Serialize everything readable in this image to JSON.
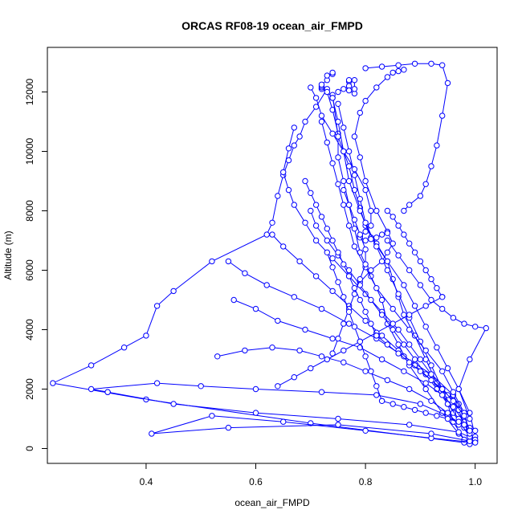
{
  "chart_data": {
    "type": "scatter",
    "title": "ORCAS RF08-19 ocean_air_FMPD",
    "xlabel": "ocean_air_FMPD",
    "ylabel": "Altitude (m)",
    "xlim": [
      0.22,
      1.04
    ],
    "ylim": [
      -500,
      13500
    ],
    "xticks": [
      0.4,
      0.6,
      0.8,
      1.0
    ],
    "xtick_labels": [
      "0.4",
      "0.6",
      "0.8",
      "1.0"
    ],
    "yticks": [
      0,
      2000,
      4000,
      6000,
      8000,
      10000,
      12000
    ],
    "ytick_labels": [
      "0",
      "2000",
      "4000",
      "6000",
      "8000",
      "10000",
      "12000"
    ],
    "grid": false,
    "series_color": "#0000ff",
    "series": [
      {
        "x": [
          0.99,
          0.97,
          0.94,
          0.91,
          0.88,
          0.86,
          0.84,
          0.83,
          0.81,
          0.79,
          0.78,
          0.77,
          0.76,
          0.75,
          0.75,
          0.74,
          0.73
        ],
        "y": [
          150,
          500,
          1200,
          2000,
          2800,
          3500,
          4200,
          5000,
          5800,
          6600,
          7400,
          8200,
          9000,
          9800,
          10600,
          11400,
          12000
        ]
      },
      {
        "x": [
          0.73,
          0.71,
          0.69,
          0.68,
          0.67,
          0.66,
          0.65,
          0.64,
          0.63,
          0.62,
          0.52,
          0.45,
          0.42,
          0.4,
          0.36,
          0.3,
          0.23,
          0.4,
          0.7,
          0.98
        ],
        "y": [
          12100,
          11500,
          11000,
          10500,
          10200,
          9700,
          9200,
          8500,
          7600,
          7200,
          6300,
          5300,
          4800,
          3800,
          3400,
          2800,
          2200,
          1650,
          850,
          200
        ]
      },
      {
        "x": [
          0.98,
          0.96,
          0.95,
          0.93,
          0.91,
          0.89,
          0.87,
          0.86,
          0.85,
          0.84,
          0.82,
          0.8,
          0.79,
          0.78,
          0.77,
          0.75,
          0.74
        ],
        "y": [
          300,
          900,
          1500,
          2200,
          3000,
          3800,
          4500,
          5100,
          5700,
          6300,
          6900,
          7500,
          8100,
          8700,
          9500,
          10500,
          11900
        ]
      },
      {
        "x": [
          0.74,
          0.75,
          0.76,
          0.77,
          0.79,
          0.81,
          0.84,
          0.87,
          0.89,
          0.91,
          0.93,
          0.95,
          0.97,
          0.99,
          1.0
        ],
        "y": [
          11800,
          11000,
          10000,
          9000,
          8000,
          7100,
          6300,
          5500,
          4800,
          4100,
          3400,
          2700,
          2000,
          1200,
          400
        ]
      },
      {
        "x": [
          1.0,
          0.98,
          0.95,
          0.9,
          0.82,
          0.72,
          0.6,
          0.5,
          0.42,
          0.3,
          0.33
        ],
        "y": [
          250,
          700,
          1100,
          1500,
          1800,
          1900,
          2000,
          2100,
          2200,
          2000,
          1900
        ]
      },
      {
        "x": [
          0.33,
          0.45,
          0.6,
          0.75,
          0.88,
          0.97,
          1.0
        ],
        "y": [
          1900,
          1500,
          1200,
          1000,
          800,
          550,
          300
        ]
      },
      {
        "x": [
          1.0,
          0.92,
          0.8,
          0.65,
          0.52,
          0.41,
          0.55,
          0.75,
          0.92,
          0.99
        ],
        "y": [
          200,
          350,
          600,
          900,
          1100,
          500,
          700,
          800,
          500,
          250
        ]
      },
      {
        "x": [
          0.99,
          0.96,
          0.94,
          0.92,
          0.9,
          0.88,
          0.86,
          0.84,
          0.82,
          0.8,
          0.79,
          0.78,
          0.77,
          0.76,
          0.75
        ],
        "y": [
          400,
          1200,
          2000,
          2800,
          3600,
          4400,
          5200,
          6000,
          6800,
          7600,
          8400,
          9200,
          10000,
          10800,
          11600
        ]
      },
      {
        "x": [
          0.74,
          0.73,
          0.72,
          0.72,
          0.72,
          0.72,
          0.73,
          0.73,
          0.74,
          0.74
        ],
        "y": [
          11800,
          12000,
          12100,
          12150,
          12200,
          12250,
          12400,
          12550,
          12600,
          12650
        ]
      },
      {
        "x": [
          0.75,
          0.76,
          0.77,
          0.77,
          0.77,
          0.77,
          0.77,
          0.78,
          0.78,
          0.78
        ],
        "y": [
          12000,
          12100,
          12200,
          12350,
          12400,
          12200,
          12050,
          11950,
          12100,
          12400
        ]
      },
      {
        "x": [
          0.8,
          0.83,
          0.86,
          0.89,
          0.92,
          0.94,
          0.95,
          0.94,
          0.93,
          0.92,
          0.91,
          0.9,
          0.88,
          0.87
        ],
        "y": [
          12800,
          12850,
          12900,
          12950,
          12950,
          12900,
          12300,
          11200,
          10200,
          9500,
          8900,
          8500,
          8200,
          8000
        ]
      },
      {
        "x": [
          0.87,
          0.86,
          0.85,
          0.84,
          0.82,
          0.8,
          0.79,
          0.78,
          0.79,
          0.8,
          0.82,
          0.84,
          0.85,
          0.84,
          0.83,
          0.81,
          0.79
        ],
        "y": [
          12750,
          12700,
          12650,
          12500,
          12150,
          11700,
          11300,
          10500,
          9800,
          9000,
          8000,
          7300,
          6900,
          6600,
          6300,
          6000,
          5600
        ]
      },
      {
        "x": [
          0.7,
          0.71,
          0.72,
          0.74,
          0.76,
          0.78,
          0.8,
          0.81,
          0.81,
          0.8,
          0.79,
          0.79,
          0.8,
          0.81,
          0.82,
          0.83,
          0.84
        ],
        "y": [
          12150,
          11800,
          11200,
          10600,
          10000,
          9400,
          8700,
          8000,
          7500,
          7300,
          7150,
          7100,
          7000,
          7050,
          7100,
          7200,
          7250
        ]
      },
      {
        "x": [
          0.84,
          0.86,
          0.88,
          0.9,
          0.92,
          0.94,
          0.96,
          0.98,
          1.0,
          1.02,
          0.99,
          0.97,
          0.99
        ],
        "y": [
          7000,
          6500,
          6000,
          5500,
          5000,
          4700,
          4400,
          4200,
          4100,
          4050,
          3000,
          2000,
          1000
        ]
      },
      {
        "x": [
          0.67,
          0.66,
          0.65,
          0.66,
          0.67,
          0.69,
          0.71,
          0.74,
          0.77,
          0.8,
          0.83,
          0.86,
          0.88,
          0.9,
          0.92,
          0.94,
          0.97
        ],
        "y": [
          10800,
          10100,
          9300,
          8700,
          8200,
          7600,
          7000,
          6400,
          5800,
          5200,
          4600,
          4000,
          3500,
          3000,
          2500,
          2000,
          1500
        ]
      },
      {
        "x": [
          0.97,
          0.95,
          0.93,
          0.91,
          0.89,
          0.87,
          0.85,
          0.83,
          0.81,
          0.79,
          0.77,
          0.75,
          0.73,
          0.71,
          0.7
        ],
        "y": [
          1000,
          1500,
          2000,
          2500,
          3000,
          3500,
          4000,
          4500,
          5000,
          5500,
          6000,
          6500,
          7000,
          7500,
          8000
        ]
      },
      {
        "x": [
          0.56,
          0.6,
          0.64,
          0.69,
          0.74,
          0.79,
          0.83,
          0.87,
          0.91,
          0.94,
          0.96,
          0.98,
          0.99
        ],
        "y": [
          5000,
          4700,
          4300,
          4000,
          3700,
          3400,
          3000,
          2600,
          2200,
          1800,
          1400,
          900,
          400
        ]
      },
      {
        "x": [
          0.55,
          0.58,
          0.62,
          0.67,
          0.72,
          0.77,
          0.82,
          0.87,
          0.92,
          0.96,
          0.98
        ],
        "y": [
          6300,
          5900,
          5500,
          5100,
          4700,
          4200,
          3700,
          3100,
          2500,
          1800,
          1100
        ]
      },
      {
        "x": [
          0.63,
          0.65,
          0.68,
          0.71,
          0.74,
          0.77,
          0.8,
          0.83,
          0.86,
          0.89,
          0.92,
          0.95,
          0.97,
          0.98
        ],
        "y": [
          7200,
          6800,
          6300,
          5800,
          5300,
          4800,
          4300,
          3800,
          3300,
          2800,
          2300,
          1800,
          1300,
          800
        ]
      },
      {
        "x": [
          0.72,
          0.73,
          0.74,
          0.75,
          0.76,
          0.77,
          0.78,
          0.8,
          0.82,
          0.85,
          0.88,
          0.91,
          0.94,
          0.96,
          0.98,
          0.99
        ],
        "y": [
          11000,
          10300,
          9600,
          8900,
          8200,
          7500,
          6800,
          6100,
          5400,
          4700,
          4000,
          3300,
          2600,
          1900,
          1200,
          500
        ]
      },
      {
        "x": [
          0.53,
          0.58,
          0.63,
          0.68,
          0.72,
          0.76,
          0.8,
          0.84,
          0.88,
          0.92,
          0.95,
          0.97
        ],
        "y": [
          3100,
          3300,
          3400,
          3300,
          3100,
          2900,
          2600,
          2300,
          2000,
          1600,
          1200,
          800
        ]
      },
      {
        "x": [
          0.76,
          0.77,
          0.78,
          0.79,
          0.8,
          0.8,
          0.79,
          0.78,
          0.77,
          0.76,
          0.75,
          0.74
        ],
        "y": [
          8700,
          8200,
          7700,
          7200,
          6700,
          6200,
          5700,
          5200,
          4700,
          4200,
          3700,
          3200
        ]
      },
      {
        "x": [
          0.73,
          0.74,
          0.75,
          0.76,
          0.77,
          0.78,
          0.79,
          0.8,
          0.81,
          0.82,
          0.83
        ],
        "y": [
          6600,
          6100,
          5600,
          5100,
          4600,
          4100,
          3600,
          3100,
          2600,
          2100,
          1600
        ]
      },
      {
        "x": [
          0.83,
          0.85,
          0.87,
          0.89,
          0.91,
          0.93,
          0.95,
          0.97,
          0.98,
          0.99,
          1.0
        ],
        "y": [
          1600,
          1500,
          1400,
          1300,
          1200,
          1100,
          1000,
          900,
          800,
          700,
          600
        ]
      },
      {
        "x": [
          0.64,
          0.67,
          0.7,
          0.73,
          0.76,
          0.79,
          0.82,
          0.85,
          0.88,
          0.91,
          0.94
        ],
        "y": [
          2100,
          2400,
          2700,
          3000,
          3300,
          3600,
          3900,
          4200,
          4500,
          4800,
          5100
        ]
      },
      {
        "x": [
          0.94,
          0.93,
          0.92,
          0.91,
          0.9,
          0.89,
          0.88,
          0.87,
          0.86,
          0.85,
          0.84
        ],
        "y": [
          5100,
          5400,
          5700,
          6000,
          6300,
          6600,
          6900,
          7200,
          7500,
          7800,
          8000
        ]
      },
      {
        "x": [
          0.69,
          0.7,
          0.71,
          0.72,
          0.73,
          0.74,
          0.75,
          0.76,
          0.77,
          0.78,
          0.79,
          0.8,
          0.81,
          0.82
        ],
        "y": [
          9000,
          8600,
          8200,
          7800,
          7400,
          7000,
          6600,
          6200,
          5800,
          5400,
          5000,
          4600,
          4200,
          3800
        ]
      },
      {
        "x": [
          0.82,
          0.84,
          0.86,
          0.88,
          0.9,
          0.92,
          0.94,
          0.96,
          0.98,
          0.99
        ],
        "y": [
          3800,
          3500,
          3200,
          2900,
          2600,
          2300,
          2000,
          1600,
          1100,
          600
        ]
      }
    ]
  }
}
